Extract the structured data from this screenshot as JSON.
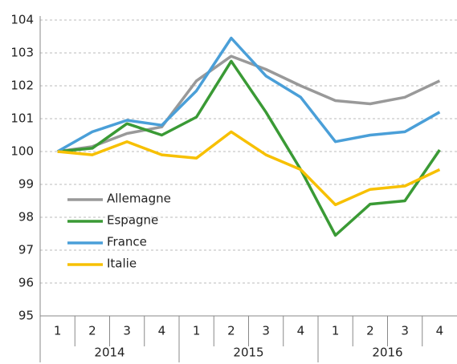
{
  "chart_data": {
    "type": "line",
    "categories": [
      "1",
      "2",
      "3",
      "4",
      "1",
      "2",
      "3",
      "4",
      "1",
      "2",
      "3",
      "4"
    ],
    "category_groups": [
      "2014",
      "2015",
      "2016"
    ],
    "ylim": [
      95,
      104
    ],
    "yticks": [
      95,
      96,
      97,
      98,
      99,
      100,
      101,
      102,
      103,
      104
    ],
    "grid": true,
    "legend": "left",
    "series": [
      {
        "name": "Allemagne",
        "color": "#999999",
        "values": [
          100,
          100.15,
          100.55,
          100.75,
          102.15,
          102.9,
          102.5,
          102.0,
          101.55,
          101.45,
          101.65,
          102.15
        ]
      },
      {
        "name": "Espagne",
        "color": "#3a9a35",
        "values": [
          100,
          100.1,
          100.85,
          100.5,
          101.05,
          102.75,
          101.2,
          99.45,
          97.45,
          98.4,
          98.5,
          100.05
        ]
      },
      {
        "name": "France",
        "color": "#4a9fd8",
        "values": [
          100,
          100.6,
          100.95,
          100.8,
          101.85,
          103.45,
          102.3,
          101.65,
          100.3,
          100.5,
          100.6,
          101.2
        ]
      },
      {
        "name": "Italie",
        "color": "#f7c000",
        "values": [
          100,
          99.9,
          100.3,
          99.9,
          99.8,
          100.6,
          99.9,
          99.45,
          98.38,
          98.85,
          98.95,
          99.45
        ]
      }
    ]
  }
}
